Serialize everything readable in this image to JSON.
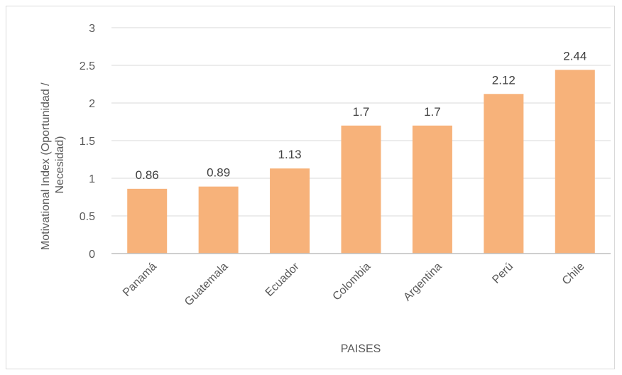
{
  "chart_data": {
    "type": "bar",
    "categories": [
      "Panamá",
      "Guatemala",
      "Ecuador",
      "Colombia",
      "Argentina",
      "Perú",
      "Chile"
    ],
    "values": [
      0.86,
      0.89,
      1.13,
      1.7,
      1.7,
      2.12,
      2.44
    ],
    "value_labels": [
      "0.86",
      "0.89",
      "1.13",
      "1.7",
      "1.7",
      "2.12",
      "2.44"
    ],
    "yticks": [
      "0",
      "0.5",
      "1",
      "1.5",
      "2",
      "2.5",
      "3"
    ],
    "ylim": [
      0,
      3
    ],
    "xlabel": "PAISES",
    "ylabel_lines": [
      "Motivational Index (Oportunidad /",
      "Necesidad)"
    ],
    "title": "",
    "grid": true,
    "legend": "none",
    "bar_color": "#F7B27A",
    "grid_color": "#d9d9d9",
    "axis_color": "#bfbfbf"
  }
}
